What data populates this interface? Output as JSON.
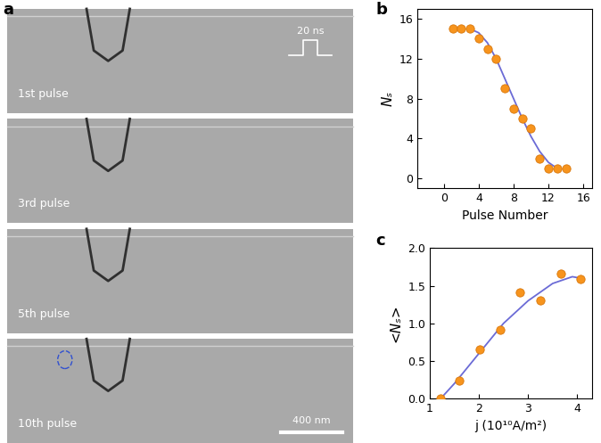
{
  "panel_a": {
    "label": "a",
    "images": [
      "1st pulse",
      "3rd pulse",
      "5th pulse",
      "10th pulse"
    ],
    "pulse_width": "20 ns",
    "scale_bar": "400 nm"
  },
  "chart_data": [
    {
      "type": "scatter",
      "title": "b",
      "x_label": "Pulse Number",
      "y_label": "Nₛ",
      "xlim": [
        -3,
        17
      ],
      "xticks": [
        0,
        4,
        8,
        12,
        16
      ],
      "ylim": [
        -1,
        17
      ],
      "yticks": [
        0,
        4,
        8,
        12,
        16
      ],
      "series": [
        {
          "type": "scatter",
          "color": "#f7941d",
          "marker": "o",
          "x": [
            1,
            2,
            3,
            4,
            5,
            6,
            7,
            8,
            9,
            10,
            11,
            12,
            13,
            14
          ],
          "values": [
            15,
            15,
            15,
            14,
            13,
            12,
            9,
            7,
            6,
            5,
            2,
            1,
            1,
            1
          ]
        },
        {
          "type": "line",
          "color": "#6b6bd6",
          "line_style": "solid",
          "x": [
            3,
            4,
            5,
            6,
            7,
            8,
            9,
            10,
            11,
            12,
            13
          ],
          "values": [
            15,
            14.6,
            13.6,
            12,
            10,
            8,
            6,
            4.2,
            2.7,
            1.6,
            1.0
          ]
        }
      ]
    },
    {
      "type": "scatter",
      "title": "c",
      "x_label": "j (10¹⁰A/m²)",
      "y_label": "<Nₛ>",
      "xlim": [
        1,
        4.3
      ],
      "xticks": [
        1,
        2,
        3,
        4
      ],
      "ylim": [
        0,
        2
      ],
      "yticks": [
        {
          "value": 0,
          "label": "0.0"
        },
        {
          "value": 0.5,
          "label": "0.5"
        },
        {
          "value": 1,
          "label": "1.0"
        },
        {
          "value": 1.5,
          "label": "1.5"
        },
        {
          "value": 2,
          "label": "2.0"
        }
      ],
      "series": [
        {
          "type": "scatter",
          "color": "#f7941d",
          "marker": "o",
          "x": [
            1.22,
            1.6,
            2.02,
            2.43,
            2.84,
            3.25,
            3.66,
            4.07
          ],
          "values": [
            0,
            0.24,
            0.66,
            0.92,
            1.41,
            1.31,
            1.66,
            1.59
          ]
        },
        {
          "type": "line",
          "color": "#6b6bd6",
          "line_style": "solid",
          "x": [
            1.22,
            1.5,
            2.0,
            2.5,
            3.0,
            3.5,
            3.9,
            4.07
          ],
          "values": [
            0,
            0.2,
            0.6,
            1.0,
            1.3,
            1.53,
            1.62,
            1.6
          ]
        }
      ]
    }
  ]
}
